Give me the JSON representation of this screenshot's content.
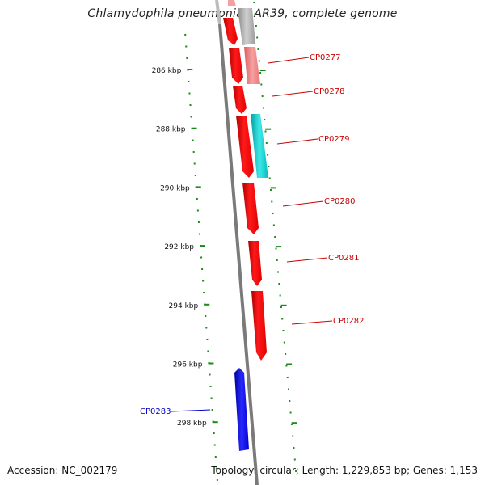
{
  "title": "Chlamydophila pneumoniae AR39, complete genome",
  "accession_text": "Accession: NC_002179",
  "summary_text": "Topology: circular; Length: 1,229,853 bp; Genes: 1,153",
  "colors": {
    "gene_forward": "#ff0000",
    "gene_forward_light": "#f08080",
    "gene_reverse_gray": "#aaaaaa",
    "gene_cyan": "#00c8c8",
    "gene_blue": "#0000ee",
    "label_red": "#cc0000",
    "label_blue": "#0000cc",
    "ruler_green": "#1a8a1a",
    "backbone": "#808080"
  },
  "ruler_labels": [
    {
      "text": "286 kbp",
      "kbp": 286
    },
    {
      "text": "288 kbp",
      "kbp": 288
    },
    {
      "text": "290 kbp",
      "kbp": 290
    },
    {
      "text": "292 kbp",
      "kbp": 292
    },
    {
      "text": "294 kbp",
      "kbp": 294
    },
    {
      "text": "296 kbp",
      "kbp": 296
    },
    {
      "text": "298 kbp",
      "kbp": 298
    }
  ],
  "genes": [
    {
      "label": "CP0277",
      "strand": "outer",
      "color": "red"
    },
    {
      "label": "CP0278",
      "strand": "outer",
      "color": "red"
    },
    {
      "label": "CP0279",
      "strand": "outer",
      "color": "red"
    },
    {
      "label": "CP0280",
      "strand": "outer",
      "color": "red"
    },
    {
      "label": "CP0281",
      "strand": "outer",
      "color": "red"
    },
    {
      "label": "CP0282",
      "strand": "outer",
      "color": "red"
    },
    {
      "label": "CP0283",
      "strand": "inner",
      "color": "blue"
    }
  ]
}
